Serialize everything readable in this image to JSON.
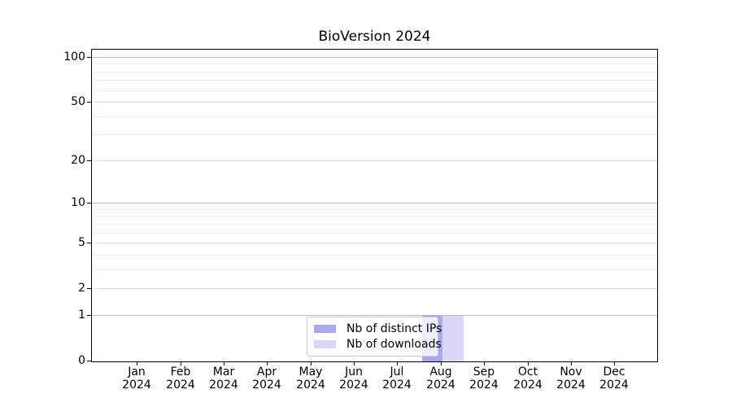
{
  "figure": {
    "title": "BioVersion 2024",
    "background": "#ffffff"
  },
  "legend": {
    "items": [
      {
        "label": "Nb of distinct IPs",
        "color": "#a9a9f0"
      },
      {
        "label": "Nb of downloads",
        "color": "#d9d9f7"
      }
    ]
  },
  "chart_data": {
    "type": "bar",
    "title": "BioVersion 2024",
    "x_months": [
      "Jan",
      "Feb",
      "Mar",
      "Apr",
      "May",
      "Jun",
      "Jul",
      "Aug",
      "Sep",
      "Oct",
      "Nov",
      "Dec"
    ],
    "x_year": "2024",
    "categories": [
      "Jan 2024",
      "Feb 2024",
      "Mar 2024",
      "Apr 2024",
      "May 2024",
      "Jun 2024",
      "Jul 2024",
      "Aug 2024",
      "Sep 2024",
      "Oct 2024",
      "Nov 2024",
      "Dec 2024"
    ],
    "series": [
      {
        "name": "Nb of distinct IPs",
        "color": "#a9a9f0",
        "values": [
          0,
          0,
          0,
          0,
          0,
          0,
          0,
          1,
          0,
          0,
          0,
          0
        ]
      },
      {
        "name": "Nb of downloads",
        "color": "#d9d9f7",
        "values": [
          0,
          0,
          0,
          0,
          0,
          0,
          0,
          1,
          0,
          0,
          0,
          0
        ]
      }
    ],
    "yscale": "log1p",
    "ylim": [
      0,
      113
    ],
    "y_tick_values": [
      0,
      1,
      2,
      5,
      10,
      20,
      50,
      100
    ],
    "y_emphasized_gridlines": [
      1,
      10,
      100
    ],
    "y_minor_gridlines": [
      3,
      4,
      6,
      7,
      8,
      9,
      30,
      40,
      60,
      70,
      80,
      90
    ],
    "grid": "horizontal",
    "legend_position": "lower-center-inside"
  }
}
